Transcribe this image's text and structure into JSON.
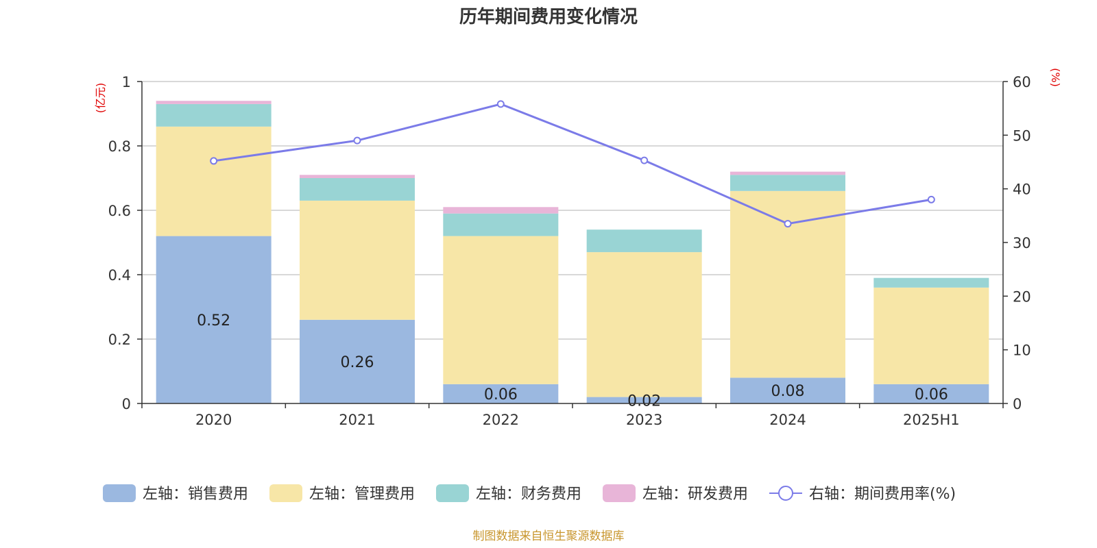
{
  "chart_data": {
    "type": "bar",
    "title": "历年期间费用变化情况",
    "y_left_unit": "(亿元)",
    "y_right_unit": "(%)",
    "categories": [
      "2020",
      "2021",
      "2022",
      "2023",
      "2024",
      "2025H1"
    ],
    "ylim_left": [
      0,
      1
    ],
    "yticks_left": [
      "0",
      "0.2",
      "0.4",
      "0.6",
      "0.8",
      "1"
    ],
    "ylim_right": [
      0,
      60
    ],
    "yticks_right": [
      "0",
      "10",
      "20",
      "30",
      "40",
      "50",
      "60"
    ],
    "grid": true,
    "legend_position": "bottom",
    "stacked": true,
    "series": [
      {
        "name": "左轴：销售费用",
        "axis": "left",
        "kind": "bar",
        "color": "#9bb8e0",
        "values": [
          0.52,
          0.26,
          0.06,
          0.02,
          0.08,
          0.06
        ],
        "labels": [
          "0.52",
          "0.26",
          "0.06",
          "0.02",
          "0.08",
          "0.06"
        ]
      },
      {
        "name": "左轴：管理费用",
        "axis": "left",
        "kind": "bar",
        "color": "#f7e6a7",
        "values": [
          0.34,
          0.37,
          0.46,
          0.45,
          0.58,
          0.3
        ]
      },
      {
        "name": "左轴：财务费用",
        "axis": "left",
        "kind": "bar",
        "color": "#99d4d4",
        "values": [
          0.07,
          0.07,
          0.07,
          0.07,
          0.05,
          0.03
        ]
      },
      {
        "name": "左轴：研发费用",
        "axis": "left",
        "kind": "bar",
        "color": "#e8b5d8",
        "values": [
          0.01,
          0.01,
          0.02,
          0.0,
          0.01,
          0.0
        ]
      },
      {
        "name": "右轴：期间费用率(%)",
        "axis": "right",
        "kind": "line",
        "color": "#7b7be8",
        "values": [
          45.2,
          49.0,
          55.8,
          45.3,
          33.5,
          38.0
        ]
      }
    ]
  },
  "footer": "制图数据来自恒生聚源数据库"
}
